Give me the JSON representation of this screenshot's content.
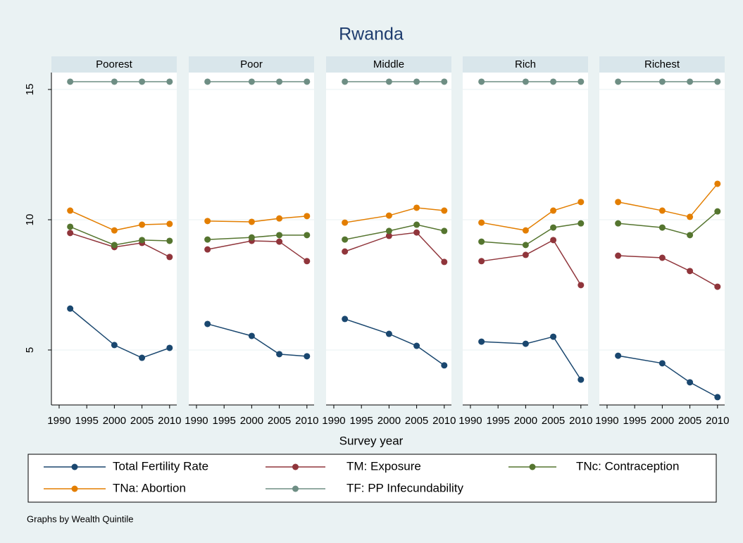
{
  "chart_data": {
    "type": "line",
    "title": "Rwanda",
    "x_label": "Survey year",
    "note": "Graphs by Wealth Quintile",
    "x": [
      1992,
      2000,
      2005,
      2010
    ],
    "xlim": [
      1988.6,
      2011.3
    ],
    "xticks": [
      1990,
      1995,
      2000,
      2005,
      2010
    ],
    "ylim": [
      2.89,
      15.65
    ],
    "yticks": [
      5,
      10,
      15
    ],
    "grid": true,
    "series": [
      {
        "name": "Total Fertility Rate",
        "color": "#1a476f"
      },
      {
        "name": "TM: Exposure",
        "color": "#90353b"
      },
      {
        "name": "TNc: Contraception",
        "color": "#55752f"
      },
      {
        "name": "TNa: Abortion",
        "color": "#e37e00"
      },
      {
        "name": "TF: PP Infecundability",
        "color": "#6e8e84"
      }
    ],
    "panels": [
      {
        "title": "Poorest",
        "series": [
          {
            "values": [
              6.59,
              5.19,
              4.7,
              5.08
            ]
          },
          {
            "values": [
              9.49,
              8.95,
              9.11,
              8.57
            ]
          },
          {
            "values": [
              9.73,
              9.03,
              9.22,
              9.19
            ]
          },
          {
            "values": [
              10.35,
              9.59,
              9.81,
              9.84
            ]
          },
          {
            "values": [
              15.3,
              15.3,
              15.3,
              15.3
            ]
          }
        ]
      },
      {
        "title": "Poor",
        "series": [
          {
            "values": [
              6.0,
              5.54,
              4.84,
              4.76
            ]
          },
          {
            "values": [
              8.86,
              9.19,
              9.16,
              8.41
            ]
          },
          {
            "values": [
              9.24,
              9.32,
              9.41,
              9.41
            ]
          },
          {
            "values": [
              9.95,
              9.92,
              10.05,
              10.14
            ]
          },
          {
            "values": [
              15.3,
              15.3,
              15.3,
              15.3
            ]
          }
        ]
      },
      {
        "title": "Middle",
        "series": [
          {
            "values": [
              6.19,
              5.62,
              5.16,
              4.41
            ]
          },
          {
            "values": [
              8.78,
              9.38,
              9.51,
              8.38
            ]
          },
          {
            "values": [
              9.24,
              9.57,
              9.81,
              9.57
            ]
          },
          {
            "values": [
              9.89,
              10.16,
              10.46,
              10.35
            ]
          },
          {
            "values": [
              15.3,
              15.3,
              15.3,
              15.3
            ]
          }
        ]
      },
      {
        "title": "Rich",
        "series": [
          {
            "values": [
              5.32,
              5.24,
              5.51,
              3.86
            ]
          },
          {
            "values": [
              8.41,
              8.65,
              9.22,
              7.49
            ]
          },
          {
            "values": [
              9.16,
              9.03,
              9.7,
              9.86
            ]
          },
          {
            "values": [
              9.89,
              9.59,
              10.35,
              10.68
            ]
          },
          {
            "values": [
              15.3,
              15.3,
              15.3,
              15.3
            ]
          }
        ]
      },
      {
        "title": "Richest",
        "series": [
          {
            "values": [
              4.78,
              4.49,
              3.76,
              3.19
            ]
          },
          {
            "values": [
              8.62,
              8.54,
              8.03,
              7.43
            ]
          },
          {
            "values": [
              9.86,
              9.7,
              9.41,
              10.32
            ]
          },
          {
            "values": [
              10.68,
              10.35,
              10.11,
              11.38
            ]
          },
          {
            "values": [
              15.3,
              15.3,
              15.3,
              15.3
            ]
          }
        ]
      }
    ]
  }
}
